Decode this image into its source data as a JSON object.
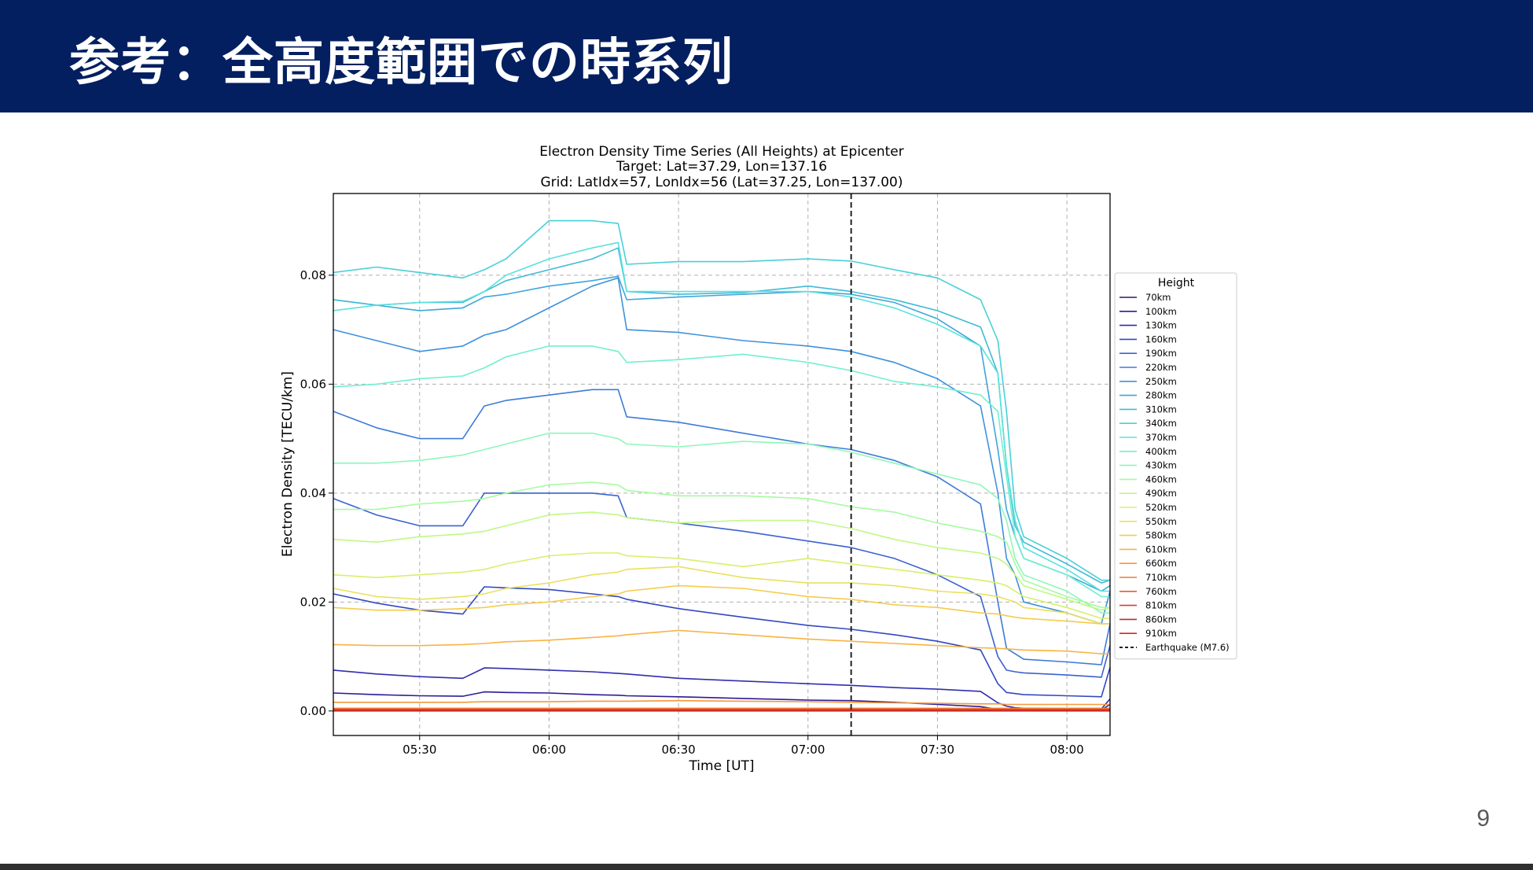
{
  "slide": {
    "title": "参考：全高度範囲での時系列",
    "page_number": "9",
    "header_color": "#031f60"
  },
  "chart_data": {
    "type": "line",
    "title": [
      "Electron Density Time Series (All Heights) at Epicenter",
      "Target: Lat=37.29, Lon=137.16",
      "Grid: LatIdx=57, LonIdx=56 (Lat=37.25, Lon=137.00)"
    ],
    "xlabel": "Time [UT]",
    "ylabel": "Electron Density [TECU/km]",
    "xlim": [
      "05:10",
      "08:10"
    ],
    "ylim": [
      -0.0045,
      0.095
    ],
    "xticks": [
      "05:30",
      "06:00",
      "06:30",
      "07:00",
      "07:30",
      "08:00"
    ],
    "yticks": [
      "0.00",
      "0.02",
      "0.04",
      "0.06",
      "0.08"
    ],
    "grid": true,
    "legend": {
      "title": "Height",
      "placement": "right-outside"
    },
    "x": [
      "05:10",
      "05:20",
      "05:30",
      "05:40",
      "05:45",
      "05:50",
      "06:00",
      "06:10",
      "06:16",
      "06:18",
      "06:30",
      "06:45",
      "07:00",
      "07:10",
      "07:20",
      "07:30",
      "07:40",
      "07:44",
      "07:46",
      "07:48",
      "07:50",
      "08:00",
      "08:08",
      "08:10"
    ],
    "series": [
      {
        "name": "70km",
        "color": "#30127a",
        "values": [
          0.0001,
          0.0001,
          0.0001,
          0.0001,
          0.0001,
          0.0001,
          0.0001,
          0.0001,
          0.0001,
          0.0001,
          0.0001,
          0.0001,
          0.0001,
          0.0001,
          0.0001,
          0.0001,
          0.0001,
          0.0001,
          0.0001,
          0.0001,
          0.0001,
          0.0001,
          0.0001,
          0.0001
        ]
      },
      {
        "name": "100km",
        "color": "#2e1a94",
        "values": [
          0.0033,
          0.003,
          0.0028,
          0.0027,
          0.0035,
          0.0034,
          0.0033,
          0.003,
          0.0029,
          0.0028,
          0.0026,
          0.0023,
          0.002,
          0.0019,
          0.0016,
          0.0012,
          0.0008,
          0.0003,
          0.0002,
          0.0002,
          0.0002,
          0.0002,
          0.0002,
          0.0012
        ]
      },
      {
        "name": "130km",
        "color": "#2f2ead",
        "values": [
          0.0075,
          0.0068,
          0.0063,
          0.006,
          0.0079,
          0.0078,
          0.0075,
          0.0072,
          0.0069,
          0.0068,
          0.006,
          0.0055,
          0.005,
          0.0047,
          0.0043,
          0.004,
          0.0036,
          0.0015,
          0.0009,
          0.0006,
          0.0005,
          0.0004,
          0.0004,
          0.0022
        ]
      },
      {
        "name": "160km",
        "color": "#3348c1",
        "values": [
          0.0215,
          0.0198,
          0.0185,
          0.0178,
          0.0228,
          0.0226,
          0.0223,
          0.0215,
          0.021,
          0.0205,
          0.0188,
          0.0172,
          0.0157,
          0.015,
          0.014,
          0.0128,
          0.0112,
          0.005,
          0.0034,
          0.0032,
          0.003,
          0.0028,
          0.0026,
          0.008
        ]
      },
      {
        "name": "190km",
        "color": "#3a62d0",
        "values": [
          0.039,
          0.036,
          0.034,
          0.034,
          0.04,
          0.04,
          0.04,
          0.04,
          0.0395,
          0.0355,
          0.0345,
          0.033,
          0.0312,
          0.03,
          0.028,
          0.025,
          0.021,
          0.01,
          0.0075,
          0.0072,
          0.007,
          0.0066,
          0.0062,
          0.012
        ]
      },
      {
        "name": "220km",
        "color": "#3e7bd8",
        "values": [
          0.055,
          0.052,
          0.05,
          0.05,
          0.056,
          0.057,
          0.058,
          0.059,
          0.059,
          0.054,
          0.053,
          0.051,
          0.049,
          0.048,
          0.046,
          0.043,
          0.038,
          0.02,
          0.0115,
          0.0105,
          0.0095,
          0.009,
          0.0085,
          0.016
        ]
      },
      {
        "name": "250km",
        "color": "#3f91db",
        "values": [
          0.07,
          0.068,
          0.066,
          0.067,
          0.069,
          0.07,
          0.074,
          0.078,
          0.0795,
          0.07,
          0.0695,
          0.068,
          0.067,
          0.066,
          0.064,
          0.061,
          0.056,
          0.04,
          0.028,
          0.025,
          0.02,
          0.018,
          0.016,
          0.022
        ]
      },
      {
        "name": "280km",
        "color": "#3fa6d8",
        "values": [
          0.0755,
          0.0745,
          0.0735,
          0.074,
          0.076,
          0.0765,
          0.078,
          0.079,
          0.0798,
          0.0755,
          0.076,
          0.0765,
          0.077,
          0.0765,
          0.075,
          0.072,
          0.067,
          0.048,
          0.037,
          0.032,
          0.028,
          0.025,
          0.022,
          0.023
        ]
      },
      {
        "name": "310km",
        "color": "#41bad6",
        "values": [
          0.0755,
          0.0745,
          0.075,
          0.075,
          0.077,
          0.079,
          0.081,
          0.083,
          0.085,
          0.077,
          0.0765,
          0.0768,
          0.078,
          0.077,
          0.0755,
          0.0735,
          0.0705,
          0.062,
          0.045,
          0.034,
          0.031,
          0.027,
          0.0235,
          0.024
        ]
      },
      {
        "name": "340km",
        "color": "#48d0d8",
        "values": [
          0.0805,
          0.0815,
          0.0805,
          0.0795,
          0.081,
          0.083,
          0.09,
          0.09,
          0.0895,
          0.082,
          0.0825,
          0.0825,
          0.083,
          0.0826,
          0.081,
          0.0795,
          0.0755,
          0.068,
          0.055,
          0.037,
          0.032,
          0.028,
          0.024,
          0.024
        ]
      },
      {
        "name": "370km",
        "color": "#58e2dc",
        "values": [
          0.0735,
          0.0745,
          0.075,
          0.0752,
          0.077,
          0.08,
          0.083,
          0.085,
          0.086,
          0.077,
          0.077,
          0.077,
          0.077,
          0.076,
          0.074,
          0.071,
          0.067,
          0.062,
          0.045,
          0.035,
          0.03,
          0.026,
          0.022,
          0.022
        ]
      },
      {
        "name": "400km",
        "color": "#72efcf",
        "values": [
          0.0595,
          0.06,
          0.061,
          0.0615,
          0.063,
          0.065,
          0.067,
          0.067,
          0.066,
          0.064,
          0.0645,
          0.0655,
          0.064,
          0.0625,
          0.0605,
          0.0595,
          0.058,
          0.055,
          0.043,
          0.032,
          0.028,
          0.025,
          0.021,
          0.021
        ]
      },
      {
        "name": "430km",
        "color": "#8ef7b9",
        "values": [
          0.0455,
          0.0455,
          0.046,
          0.047,
          0.048,
          0.049,
          0.051,
          0.051,
          0.05,
          0.049,
          0.0485,
          0.0495,
          0.049,
          0.0475,
          0.0455,
          0.0435,
          0.0415,
          0.039,
          0.035,
          0.028,
          0.025,
          0.022,
          0.018,
          0.018
        ]
      },
      {
        "name": "460km",
        "color": "#a6fb9f",
        "values": [
          0.037,
          0.037,
          0.038,
          0.0385,
          0.039,
          0.04,
          0.0415,
          0.042,
          0.0415,
          0.0405,
          0.0395,
          0.0395,
          0.039,
          0.0375,
          0.0365,
          0.0345,
          0.033,
          0.032,
          0.031,
          0.027,
          0.024,
          0.021,
          0.019,
          0.019
        ]
      },
      {
        "name": "490km",
        "color": "#bff983",
        "values": [
          0.0315,
          0.031,
          0.032,
          0.0325,
          0.033,
          0.034,
          0.036,
          0.0365,
          0.036,
          0.0355,
          0.0345,
          0.035,
          0.035,
          0.0335,
          0.0315,
          0.03,
          0.029,
          0.028,
          0.027,
          0.025,
          0.023,
          0.0205,
          0.0185,
          0.019
        ]
      },
      {
        "name": "520km",
        "color": "#d6f06b",
        "values": [
          0.025,
          0.0245,
          0.025,
          0.0255,
          0.026,
          0.027,
          0.0285,
          0.029,
          0.029,
          0.0285,
          0.028,
          0.0265,
          0.028,
          0.027,
          0.026,
          0.025,
          0.024,
          0.0235,
          0.023,
          0.022,
          0.021,
          0.019,
          0.017,
          0.017
        ]
      },
      {
        "name": "550km",
        "color": "#eae05c",
        "values": [
          0.0225,
          0.021,
          0.0205,
          0.021,
          0.0215,
          0.0225,
          0.0235,
          0.025,
          0.0255,
          0.026,
          0.0265,
          0.0245,
          0.0235,
          0.0235,
          0.023,
          0.022,
          0.0215,
          0.021,
          0.0205,
          0.02,
          0.019,
          0.018,
          0.016,
          0.016
        ]
      },
      {
        "name": "580km",
        "color": "#f5cb4e",
        "values": [
          0.019,
          0.0185,
          0.0185,
          0.0188,
          0.019,
          0.0195,
          0.02,
          0.021,
          0.0215,
          0.022,
          0.023,
          0.0225,
          0.021,
          0.0205,
          0.0195,
          0.019,
          0.018,
          0.0178,
          0.0175,
          0.0172,
          0.017,
          0.0165,
          0.016,
          0.016
        ]
      },
      {
        "name": "610km",
        "color": "#f7b444",
        "values": [
          0.0122,
          0.012,
          0.012,
          0.0122,
          0.0124,
          0.0127,
          0.013,
          0.0135,
          0.0138,
          0.014,
          0.0148,
          0.014,
          0.0132,
          0.0128,
          0.0124,
          0.012,
          0.0116,
          0.0115,
          0.0114,
          0.0113,
          0.0112,
          0.011,
          0.0105,
          0.0105
        ]
      },
      {
        "name": "660km",
        "color": "#f5983a",
        "values": [
          0.0016,
          0.0016,
          0.0016,
          0.0016,
          0.0017,
          0.0017,
          0.0017,
          0.0018,
          0.0018,
          0.0018,
          0.0019,
          0.0018,
          0.0017,
          0.0016,
          0.0015,
          0.0014,
          0.0013,
          0.0013,
          0.0012,
          0.0012,
          0.0012,
          0.0012,
          0.0012,
          0.0012
        ]
      },
      {
        "name": "710km",
        "color": "#ee7a35",
        "values": [
          0.0005,
          0.0005,
          0.0005,
          0.0005,
          0.0005,
          0.0005,
          0.0005,
          0.0005,
          0.0005,
          0.0005,
          0.0005,
          0.0005,
          0.0005,
          0.0005,
          0.0005,
          0.0005,
          0.0005,
          0.0005,
          0.0005,
          0.0005,
          0.0005,
          0.0005,
          0.0005,
          0.0005
        ]
      },
      {
        "name": "760km",
        "color": "#e25c34",
        "values": [
          0.0003,
          0.0003,
          0.0003,
          0.0003,
          0.0003,
          0.0003,
          0.0003,
          0.0003,
          0.0003,
          0.0003,
          0.0003,
          0.0003,
          0.0003,
          0.0003,
          0.0003,
          0.0003,
          0.0003,
          0.0003,
          0.0003,
          0.0003,
          0.0003,
          0.0003,
          0.0003,
          0.0003
        ]
      },
      {
        "name": "810km",
        "color": "#d04232",
        "values": [
          0.0002,
          0.0002,
          0.0002,
          0.0002,
          0.0002,
          0.0002,
          0.0002,
          0.0002,
          0.0002,
          0.0002,
          0.0002,
          0.0002,
          0.0002,
          0.0002,
          0.0002,
          0.0002,
          0.0002,
          0.0002,
          0.0002,
          0.0002,
          0.0002,
          0.0002,
          0.0002,
          0.0002
        ]
      },
      {
        "name": "860km",
        "color": "#b82e2f",
        "values": [
          0.0001,
          0.0001,
          0.0001,
          0.0001,
          0.0001,
          0.0001,
          0.0001,
          0.0001,
          0.0001,
          0.0001,
          0.0001,
          0.0001,
          0.0001,
          0.0001,
          0.0001,
          0.0001,
          0.0001,
          0.0001,
          0.0001,
          0.0001,
          0.0001,
          0.0001,
          0.0001,
          0.0001
        ]
      },
      {
        "name": "910km",
        "color": "#d2291c",
        "values": [
          0.0,
          0.0,
          0.0,
          0.0,
          0.0,
          0.0,
          0.0,
          0.0,
          0.0,
          0.0,
          0.0,
          0.0,
          0.0,
          0.0,
          0.0,
          0.0,
          0.0,
          0.0,
          0.0,
          0.0,
          0.0,
          0.0,
          0.0,
          0.0
        ]
      }
    ],
    "event": {
      "name": "Earthquake (M7.6)",
      "x": "07:10",
      "style": "dashed",
      "color": "#222222"
    }
  }
}
